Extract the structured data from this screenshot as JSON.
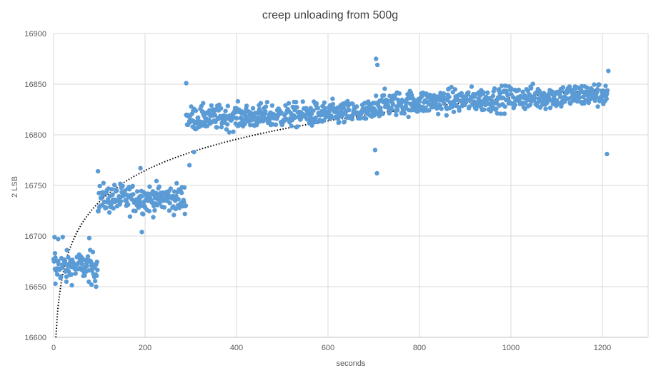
{
  "chart_data": {
    "type": "scatter",
    "title": "creep unloading from 500g",
    "xlabel": "seconds",
    "ylabel": "2 LSB",
    "xlim": [
      0,
      1300
    ],
    "ylim": [
      16600,
      16900
    ],
    "x_ticks": [
      0,
      200,
      400,
      600,
      800,
      1000,
      1200
    ],
    "y_ticks": [
      16600,
      16650,
      16700,
      16750,
      16800,
      16850,
      16900
    ],
    "grid": true,
    "legend": "none",
    "colors": {
      "points": "#5B9BD5",
      "trendline": "#000000",
      "grid": "#D9D9D9",
      "text": "#595959"
    },
    "series": [
      {
        "marker": "circle",
        "point_count": 1210,
        "segments": [
          {
            "x_range": [
              0,
              97
            ],
            "mean": 16670,
            "spread": 13
          },
          {
            "x_range": [
              97,
              290
            ],
            "mean": 16737,
            "spread": 13
          },
          {
            "x_range": [
              290,
              703
            ],
            "mean": 16816,
            "spread": 11
          },
          {
            "x_range": [
              703,
              1212
            ],
            "mean": 16830,
            "spread": 11
          }
        ],
        "outliers": [
          {
            "x": 2,
            "y": 16699
          },
          {
            "x": 3,
            "y": 16683
          },
          {
            "x": 4,
            "y": 16653
          },
          {
            "x": 10,
            "y": 16697
          },
          {
            "x": 20,
            "y": 16699
          },
          {
            "x": 28,
            "y": 16655
          },
          {
            "x": 78,
            "y": 16698
          },
          {
            "x": 83,
            "y": 16652
          },
          {
            "x": 93,
            "y": 16650
          },
          {
            "x": 97,
            "y": 16764
          },
          {
            "x": 193,
            "y": 16704
          },
          {
            "x": 190,
            "y": 16767
          },
          {
            "x": 290,
            "y": 16851
          },
          {
            "x": 307,
            "y": 16783
          },
          {
            "x": 297,
            "y": 16770
          },
          {
            "x": 705,
            "y": 16875
          },
          {
            "x": 708,
            "y": 16869
          },
          {
            "x": 707,
            "y": 16762
          },
          {
            "x": 703,
            "y": 16785
          },
          {
            "x": 1213,
            "y": 16863
          },
          {
            "x": 1210,
            "y": 16781
          }
        ]
      }
    ],
    "trendline": {
      "type": "logarithmic",
      "style": "dotted",
      "y_at_x5": 16600,
      "y_at_x1210": 16845
    }
  }
}
